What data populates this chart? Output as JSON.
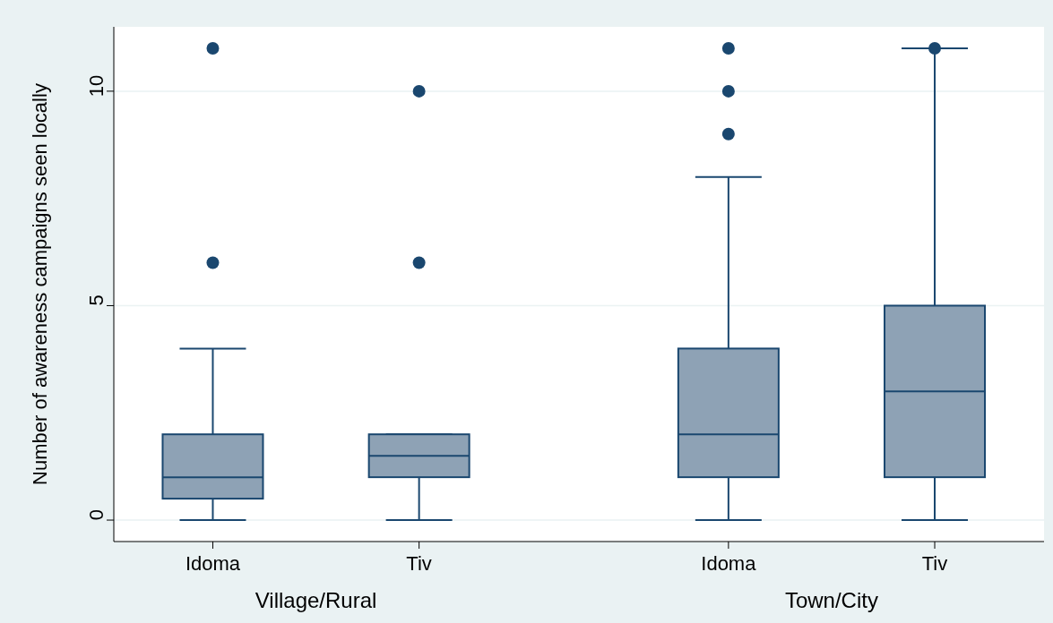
{
  "chart_data": {
    "type": "box",
    "ylabel": "Number of awareness campaigns seen locally",
    "categories": [
      "Idoma",
      "Tiv",
      "Idoma",
      "Tiv"
    ],
    "annotations": [
      "Village/Rural",
      "Town/City"
    ],
    "color": "#8ea2b5",
    "ylim": [
      -0.5,
      11.5
    ],
    "yticks": [
      0,
      5,
      10
    ],
    "grid": "y",
    "boxes": [
      {
        "low": 0,
        "q1": 0.5,
        "median": 1,
        "q3": 2,
        "high": 4,
        "outliers": [
          6,
          11
        ]
      },
      {
        "low": 0,
        "q1": 1,
        "median": 1.5,
        "q3": 2,
        "high": 2,
        "outliers": [
          6,
          10
        ]
      },
      {
        "low": 0,
        "q1": 1,
        "median": 2,
        "q3": 4,
        "high": 8,
        "outliers": [
          9,
          10,
          11
        ]
      },
      {
        "low": 0,
        "q1": 1,
        "median": 3,
        "q3": 5,
        "high": 11,
        "outliers": [
          11
        ]
      }
    ]
  }
}
